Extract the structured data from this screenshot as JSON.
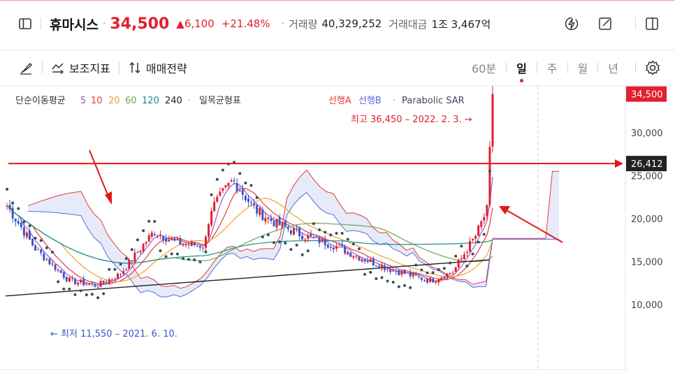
{
  "header": {
    "name": "휴마시스",
    "price": "34,500",
    "change": "▲6,100",
    "change_pct": "+21.48%",
    "volume_label": "거래량",
    "volume": "40,329,252",
    "amount_label": "거래대금",
    "amount": "1조 3,467억"
  },
  "toolbar": {
    "indicator_label": "보조지표",
    "strategy_label": "매매전략",
    "periods": [
      "60분",
      "일",
      "주",
      "월",
      "년"
    ],
    "active_period": "일"
  },
  "legend": {
    "ma_label": "단순이동평균",
    "ma_periods": [
      "5",
      "10",
      "20",
      "60",
      "120",
      "240"
    ],
    "ichimoku_label": "일목균형표",
    "span_a": "선행A",
    "span_b": "선행B",
    "psar_label": "Parabolic SAR"
  },
  "colors": {
    "up": "#e0202e",
    "down": "#3a55c8",
    "ma5": "#9b59d0",
    "ma10": "#e53b3b",
    "ma20": "#f0a030",
    "ma60": "#6aa84f",
    "ma120": "#1a8c8c",
    "ma240": "#222222",
    "span_a": "#e53b3b",
    "span_b": "#5a6bd8",
    "psar": "#3d4a5c"
  },
  "chart_data": {
    "type": "candlestick",
    "y_ticks": [
      "10,000",
      "15,000",
      "20,000",
      "25,000",
      "30,000"
    ],
    "ylim": [
      8500,
      37500
    ],
    "current_price": "34,500",
    "reference_price": "26,412",
    "annotation_high": "최고 36,450 – 2022. 2. 3. →",
    "annotation_low": "← 최저 11,550 – 2021. 6. 10.",
    "high_value": 36450,
    "low_value": 11550,
    "reference_value": 26412
  }
}
